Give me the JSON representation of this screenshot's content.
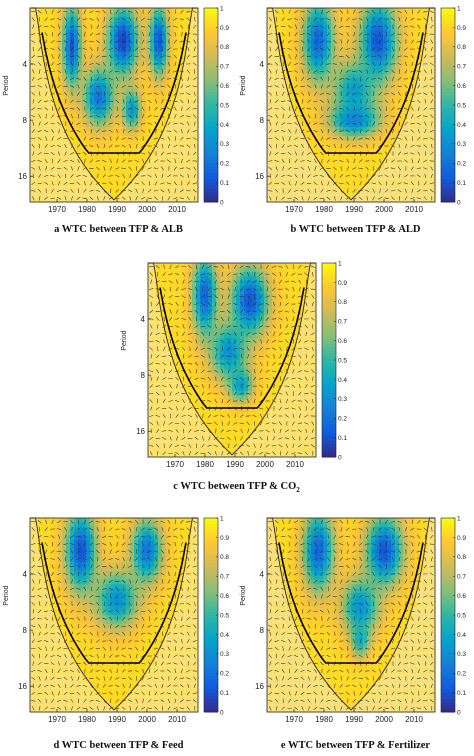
{
  "figure": {
    "colormap": [
      "#352a87",
      "#0f5cdd",
      "#1481d6",
      "#06a4ca",
      "#2eb7a4",
      "#87bf77",
      "#d1bb59",
      "#fec832",
      "#f9fb0e"
    ],
    "edge_color": "#e1a43a",
    "background_color": "#f7e7b6",
    "arrow_color": "#3a2a10"
  },
  "chart_data": [
    {
      "id": "a",
      "type": "heatmap",
      "caption_prefix": "a WTC between TFP & ",
      "caption_var": "ALB",
      "caption_sub": "",
      "ylabel": "Period",
      "x_ticks": [
        1970,
        1980,
        1990,
        2000,
        2010
      ],
      "y_ticks": [
        4,
        8,
        16
      ],
      "xlim": [
        1961,
        2017
      ],
      "colorbar_range": [
        0,
        1
      ],
      "colorbar_ticks": [
        "0",
        "0.1",
        "0.2",
        "0.3",
        "0.4",
        "0.5",
        "0.6",
        "0.7",
        "0.8",
        "0.9",
        "1"
      ],
      "blobs": [
        [
          1975,
          3.2,
          3.0,
          0.7,
          0.1
        ],
        [
          1992,
          3.0,
          5.0,
          0.6,
          0.05
        ],
        [
          2004,
          3.0,
          3.0,
          0.6,
          0.1
        ],
        [
          1984,
          6.0,
          5.0,
          0.5,
          0.2
        ],
        [
          1995,
          7.0,
          3.0,
          0.35,
          0.3
        ]
      ]
    },
    {
      "id": "b",
      "type": "heatmap",
      "caption_prefix": "b WTC between TFP & ",
      "caption_var": "ALD",
      "caption_sub": "",
      "ylabel": "Period",
      "x_ticks": [
        1970,
        1980,
        1990,
        2000,
        2010
      ],
      "y_ticks": [
        4,
        8,
        16
      ],
      "xlim": [
        1961,
        2017
      ],
      "colorbar_range": [
        0,
        1
      ],
      "colorbar_ticks": [
        "0",
        "0.1",
        "0.2",
        "0.3",
        "0.4",
        "0.5",
        "0.6",
        "0.7",
        "0.8",
        "0.9",
        "1"
      ],
      "blobs": [
        [
          1978,
          3.0,
          5.0,
          0.7,
          0.15
        ],
        [
          1998,
          3.0,
          6.0,
          0.7,
          0.1
        ],
        [
          1990,
          5.5,
          7.0,
          0.5,
          0.35
        ],
        [
          1990,
          8.0,
          8.0,
          0.3,
          0.25
        ]
      ]
    },
    {
      "id": "c",
      "type": "heatmap",
      "caption_prefix": "c WTC between TFP & ",
      "caption_var": "CO",
      "caption_sub": "2",
      "ylabel": "Period",
      "x_ticks": [
        1970,
        1980,
        1990,
        2000,
        2010
      ],
      "y_ticks": [
        4,
        8,
        16
      ],
      "xlim": [
        1961,
        2017
      ],
      "colorbar_range": [
        0,
        1
      ],
      "colorbar_ticks": [
        "0",
        "0.1",
        "0.2",
        "0.3",
        "0.4",
        "0.5",
        "0.6",
        "0.7",
        "0.8",
        "0.9",
        "1"
      ],
      "blobs": [
        [
          1980,
          3.0,
          4.0,
          0.7,
          0.15
        ],
        [
          1995,
          3.2,
          6.0,
          0.6,
          0.1
        ],
        [
          1988,
          6.0,
          6.0,
          0.5,
          0.3
        ],
        [
          1992,
          9.0,
          4.0,
          0.3,
          0.35
        ]
      ]
    },
    {
      "id": "d",
      "type": "heatmap",
      "caption_prefix": "d WTC between TFP & ",
      "caption_var": "Feed",
      "caption_sub": "",
      "ylabel": "Period",
      "x_ticks": [
        1970,
        1980,
        1990,
        2000,
        2010
      ],
      "y_ticks": [
        4,
        8,
        16
      ],
      "xlim": [
        1961,
        2017
      ],
      "colorbar_range": [
        0,
        1
      ],
      "colorbar_ticks": [
        "0",
        "0.1",
        "0.2",
        "0.3",
        "0.4",
        "0.5",
        "0.6",
        "0.7",
        "0.8",
        "0.9",
        "1"
      ],
      "blobs": [
        [
          1978,
          3.0,
          5.0,
          0.7,
          0.1
        ],
        [
          2000,
          3.0,
          5.0,
          0.55,
          0.2
        ],
        [
          1990,
          5.5,
          7.0,
          0.5,
          0.3
        ]
      ]
    },
    {
      "id": "e",
      "type": "heatmap",
      "caption_prefix": "e WTC between TFP & ",
      "caption_var": "Fertilizer",
      "caption_sub": "",
      "ylabel": "Period",
      "x_ticks": [
        1970,
        1980,
        1990,
        2000,
        2010
      ],
      "y_ticks": [
        4,
        8,
        16
      ],
      "xlim": [
        1961,
        2017
      ],
      "colorbar_range": [
        0,
        1
      ],
      "colorbar_ticks": [
        "0",
        "0.1",
        "0.2",
        "0.3",
        "0.4",
        "0.5",
        "0.6",
        "0.7",
        "0.8",
        "0.9",
        "1"
      ],
      "blobs": [
        [
          1978,
          3.0,
          5.0,
          0.7,
          0.15
        ],
        [
          2000,
          3.0,
          6.0,
          0.6,
          0.1
        ],
        [
          1992,
          6.0,
          6.0,
          0.5,
          0.3
        ],
        [
          1992,
          9.0,
          3.0,
          0.3,
          0.4
        ]
      ]
    }
  ]
}
